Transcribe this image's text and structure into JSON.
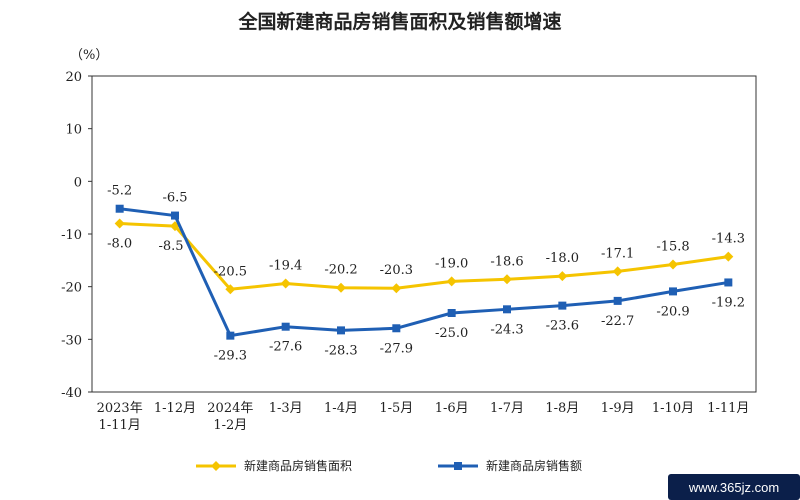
{
  "chart_data": {
    "type": "line",
    "title": "全国新建商品房销售面积及销售额增速",
    "unit_label": "（%）",
    "ylim": [
      -40,
      20
    ],
    "yticks": [
      20,
      10,
      0,
      -10,
      -20,
      -30,
      -40
    ],
    "grid": false,
    "legend_position": "bottom",
    "categories": [
      [
        "2023年",
        "1-11月"
      ],
      [
        "1-12月"
      ],
      [
        "2024年",
        "1-2月"
      ],
      [
        "1-3月"
      ],
      [
        "1-4月"
      ],
      [
        "1-5月"
      ],
      [
        "1-6月"
      ],
      [
        "1-7月"
      ],
      [
        "1-8月"
      ],
      [
        "1-9月"
      ],
      [
        "1-10月"
      ],
      [
        "1-11月"
      ]
    ],
    "series": [
      {
        "name": "新建商品房销售面积",
        "color": "#f5c400",
        "marker": "diamond",
        "values": [
          -8.0,
          -8.5,
          -20.5,
          -19.4,
          -20.2,
          -20.3,
          -19.0,
          -18.6,
          -18.0,
          -17.1,
          -15.8,
          -14.3
        ],
        "labels": [
          "-8.0",
          "-8.5",
          "-20.5",
          "-19.4",
          "-20.2",
          "-20.3",
          "-19.0",
          "-18.6",
          "-18.0",
          "-17.1",
          "-15.8",
          "-14.3"
        ]
      },
      {
        "name": "新建商品房销售额",
        "color": "#1f5fb4",
        "marker": "square",
        "values": [
          -5.2,
          -6.5,
          -29.3,
          -27.6,
          -28.3,
          -27.9,
          -25.0,
          -24.3,
          -23.6,
          -22.7,
          -20.9,
          -19.2
        ],
        "labels": [
          "-5.2",
          "-6.5",
          "-29.3",
          "-27.6",
          "-28.3",
          "-27.9",
          "-25.0",
          "-24.3",
          "-23.6",
          "-22.7",
          "-20.9",
          "-19.2"
        ]
      }
    ]
  },
  "watermark": "www.365jz.com"
}
